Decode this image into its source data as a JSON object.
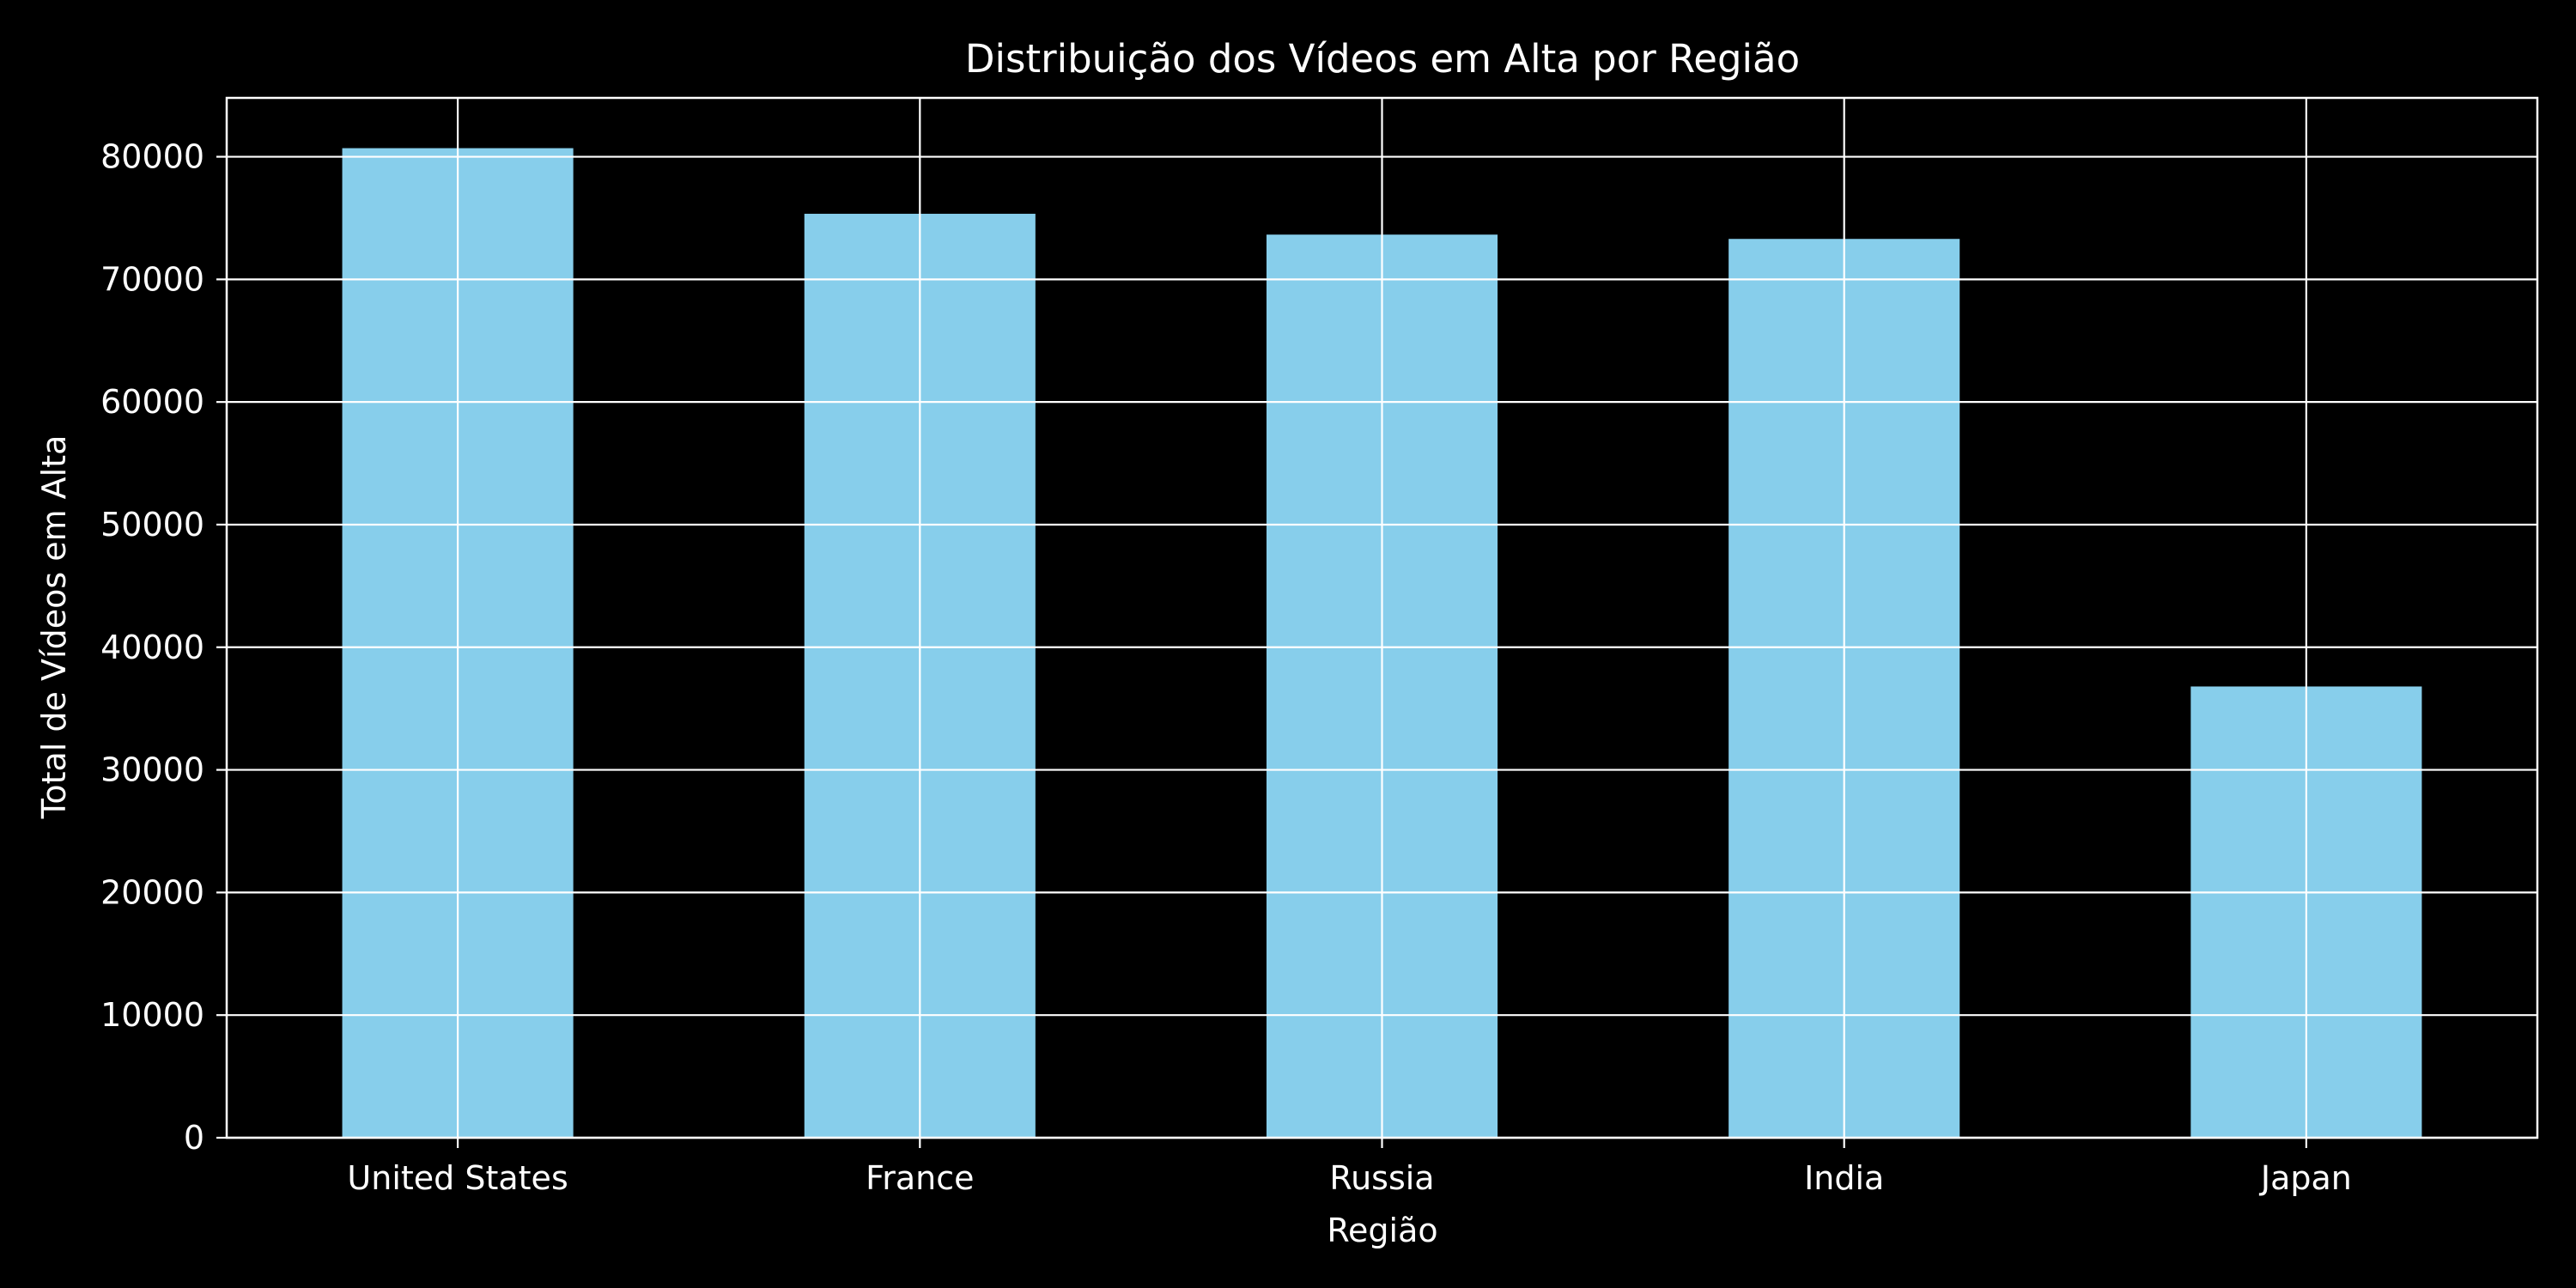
{
  "chart_data": {
    "type": "bar",
    "title": "Distribuição dos Vídeos em Alta por Região",
    "xlabel": "Região",
    "ylabel": "Total de Vídeos em Alta",
    "categories": [
      "United States",
      "France",
      "Russia",
      "India",
      "Japan"
    ],
    "values": [
      80700,
      75350,
      73650,
      73300,
      36800
    ],
    "ylim": [
      0,
      84800
    ],
    "yticks": [
      0,
      10000,
      20000,
      30000,
      40000,
      50000,
      60000,
      70000,
      80000
    ],
    "ytick_labels": [
      "0",
      "10000",
      "20000",
      "30000",
      "40000",
      "50000",
      "60000",
      "70000",
      "80000"
    ],
    "grid": true,
    "legend": "none",
    "colors": {
      "background": "#000000",
      "bar": "#87ceeb",
      "grid": "#ffffff",
      "axis": "#ffffff",
      "text": "#ffffff"
    }
  }
}
